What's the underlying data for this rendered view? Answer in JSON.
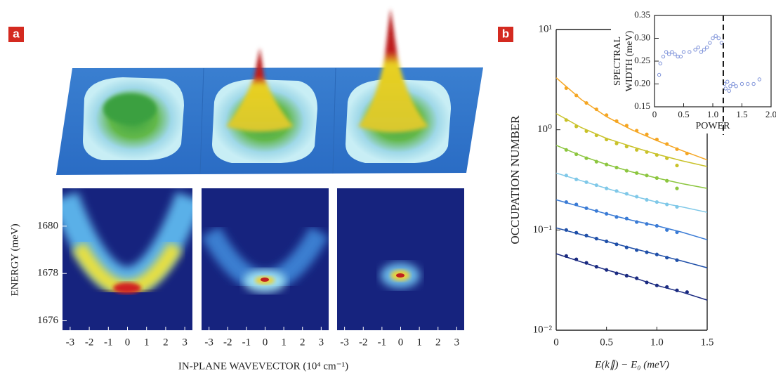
{
  "chart_data": [
    {
      "type": "heatmap",
      "label": "a",
      "xlabel": "IN-PLANE WAVEVECTOR (10⁴ cm⁻¹)",
      "ylabel": "ENERGY (meV)",
      "xlim": [
        -3.4,
        3.4
      ],
      "xticks": [
        -3,
        -2,
        -1,
        0,
        1,
        2,
        3
      ],
      "ylim": [
        1675.6,
        1681.6
      ],
      "yticks": [
        1676,
        1678,
        1680
      ]
    },
    {
      "type": "scatter",
      "label": "b",
      "log_y": true,
      "xlabel": "E(k∥) − E₀ (meV)",
      "ylabel": "OCCUPATION NUMBER",
      "xlim": [
        0,
        1.5
      ],
      "xticks": [
        0,
        0.5,
        {
          "value": 1,
          "label": "1.0"
        },
        1.5
      ],
      "ylim": [
        0.01,
        10
      ],
      "yticks": [
        {
          "value": 0.01,
          "label": "10⁻²"
        },
        {
          "value": 0.1,
          "label": "10⁻¹"
        },
        {
          "value": 1,
          "label": "10⁰"
        },
        {
          "value": 10,
          "label": "10¹"
        }
      ],
      "x": [
        0.1,
        0.2,
        0.3,
        0.4,
        0.5,
        0.6,
        0.7,
        0.8,
        0.9,
        1.0,
        1.1,
        1.2,
        1.3
      ],
      "fit_x": [
        0,
        0.25,
        0.5,
        0.75,
        1.0,
        1.25,
        1.5
      ],
      "series": [
        {
          "color": "#f5a623",
          "values": [
            2.6,
            2.2,
            1.85,
            1.6,
            1.4,
            1.22,
            1.1,
            0.98,
            0.9,
            0.8,
            0.72,
            0.64,
            0.58
          ],
          "fit": [
            3.3,
            2.0,
            1.35,
            1.0,
            0.78,
            0.62,
            0.5
          ]
        },
        {
          "color": "#c9c22a",
          "values": [
            1.25,
            1.08,
            0.97,
            0.88,
            0.8,
            0.73,
            0.68,
            0.63,
            0.6,
            0.56,
            0.52,
            0.44,
            null
          ],
          "fit": [
            1.45,
            1.05,
            0.82,
            0.68,
            0.57,
            0.49,
            0.43
          ]
        },
        {
          "color": "#8cc63f",
          "values": [
            0.63,
            0.57,
            0.52,
            0.48,
            0.45,
            0.42,
            0.39,
            0.37,
            0.35,
            0.33,
            0.31,
            0.26,
            null
          ],
          "fit": [
            0.7,
            0.55,
            0.45,
            0.38,
            0.33,
            0.29,
            0.26
          ]
        },
        {
          "color": "#7fc8e8",
          "values": [
            0.35,
            0.32,
            0.3,
            0.28,
            0.26,
            0.245,
            0.23,
            0.215,
            0.2,
            0.19,
            0.18,
            0.17,
            null
          ],
          "fit": [
            0.37,
            0.31,
            0.26,
            0.22,
            0.19,
            0.17,
            0.15
          ]
        },
        {
          "color": "#3a7bd5",
          "values": [
            0.19,
            0.18,
            0.165,
            0.155,
            0.145,
            0.135,
            0.13,
            0.12,
            0.115,
            0.11,
            0.1,
            0.095,
            null
          ],
          "fit": [
            0.2,
            0.17,
            0.145,
            0.125,
            0.11,
            0.095,
            0.08
          ]
        },
        {
          "color": "#1f4fa8",
          "values": [
            0.1,
            0.094,
            0.088,
            0.082,
            0.077,
            0.072,
            0.067,
            0.063,
            0.06,
            0.057,
            0.053,
            0.05,
            null
          ],
          "fit": [
            0.105,
            0.09,
            0.077,
            0.066,
            0.057,
            0.049,
            0.042
          ]
        },
        {
          "color": "#1a2a80",
          "values": [
            0.055,
            0.051,
            0.047,
            0.043,
            0.04,
            0.037,
            0.035,
            0.033,
            0.03,
            0.028,
            0.027,
            0.025,
            0.024
          ],
          "fit": [
            0.058,
            0.048,
            0.04,
            0.034,
            0.028,
            0.024,
            0.02
          ]
        }
      ]
    },
    {
      "type": "scatter",
      "xlabel": "POWER",
      "ylabel": [
        "SPECTRAL",
        "WIDTH (meV)"
      ],
      "xlim": [
        0,
        2
      ],
      "xticks": [
        0,
        0.5,
        {
          "value": 1,
          "label": "1.0"
        },
        1.5,
        {
          "value": 2,
          "label": "2.0"
        }
      ],
      "ylim": [
        0.15,
        0.35
      ],
      "yticks": [
        0.15,
        {
          "value": 0.2,
          "label": "0.20"
        },
        0.25,
        {
          "value": 0.3,
          "label": "0.30"
        },
        0.35
      ],
      "color": "#7a8fd8",
      "vline": 1.18,
      "x": [
        0.08,
        0.1,
        0.15,
        0.2,
        0.25,
        0.3,
        0.35,
        0.4,
        0.45,
        0.5,
        0.6,
        0.7,
        0.75,
        0.8,
        0.85,
        0.9,
        0.95,
        1.0,
        1.05,
        1.1,
        1.15,
        1.2,
        1.22,
        1.25,
        1.28,
        1.3,
        1.35,
        1.4,
        1.5,
        1.6,
        1.7,
        1.8
      ],
      "values": [
        0.22,
        0.245,
        0.26,
        0.27,
        0.265,
        0.27,
        0.265,
        0.26,
        0.26,
        0.27,
        0.27,
        0.275,
        0.28,
        0.27,
        0.275,
        0.28,
        0.29,
        0.3,
        0.305,
        0.3,
        0.29,
        0.2,
        0.19,
        0.205,
        0.185,
        0.195,
        0.2,
        0.195,
        0.2,
        0.2,
        0.2,
        0.21
      ]
    }
  ]
}
